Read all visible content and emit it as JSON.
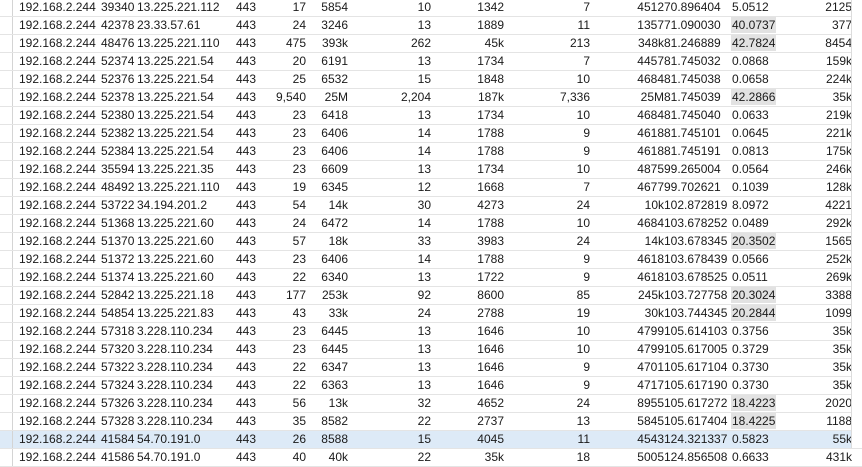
{
  "rows": [
    {
      "src": "192.168.2.244",
      "sport": "39340",
      "dst": "13.225.221.112",
      "dport": "443",
      "pa": "17",
      "ba": "5854",
      "pb": "10",
      "bb": "1342",
      "pc": "7",
      "bc": "4512",
      "rs": "70.896404",
      "dur": "5.0512",
      "hl": false,
      "bps": "2125",
      "sel": false
    },
    {
      "src": "192.168.2.244",
      "sport": "42378",
      "dst": "23.33.57.61",
      "dport": "443",
      "pa": "24",
      "ba": "3246",
      "pb": "13",
      "bb": "1889",
      "pc": "11",
      "bc": "1357",
      "rs": "71.090030",
      "dur": "40.0737",
      "hl": true,
      "bps": "377",
      "sel": false
    },
    {
      "src": "192.168.2.244",
      "sport": "48476",
      "dst": "13.225.221.110",
      "dport": "443",
      "pa": "475",
      "ba": "393k",
      "pb": "262",
      "bb": "45k",
      "pc": "213",
      "bc": "348k",
      "rs": "81.246889",
      "dur": "42.7824",
      "hl": true,
      "bps": "8454",
      "sel": false
    },
    {
      "src": "192.168.2.244",
      "sport": "52374",
      "dst": "13.225.221.54",
      "dport": "443",
      "pa": "20",
      "ba": "6191",
      "pb": "13",
      "bb": "1734",
      "pc": "7",
      "bc": "4457",
      "rs": "81.745032",
      "dur": "0.0868",
      "hl": false,
      "bps": "159k",
      "sel": false
    },
    {
      "src": "192.168.2.244",
      "sport": "52376",
      "dst": "13.225.221.54",
      "dport": "443",
      "pa": "25",
      "ba": "6532",
      "pb": "15",
      "bb": "1848",
      "pc": "10",
      "bc": "4684",
      "rs": "81.745038",
      "dur": "0.0658",
      "hl": false,
      "bps": "224k",
      "sel": false
    },
    {
      "src": "192.168.2.244",
      "sport": "52378",
      "dst": "13.225.221.54",
      "dport": "443",
      "pa": "9,540",
      "ba": "25M",
      "pb": "2,204",
      "bb": "187k",
      "pc": "7,336",
      "bc": "25M",
      "rs": "81.745039",
      "dur": "42.2866",
      "hl": true,
      "bps": "35k",
      "sel": false
    },
    {
      "src": "192.168.2.244",
      "sport": "52380",
      "dst": "13.225.221.54",
      "dport": "443",
      "pa": "23",
      "ba": "6418",
      "pb": "13",
      "bb": "1734",
      "pc": "10",
      "bc": "4684",
      "rs": "81.745040",
      "dur": "0.0633",
      "hl": false,
      "bps": "219k",
      "sel": false
    },
    {
      "src": "192.168.2.244",
      "sport": "52382",
      "dst": "13.225.221.54",
      "dport": "443",
      "pa": "23",
      "ba": "6406",
      "pb": "14",
      "bb": "1788",
      "pc": "9",
      "bc": "4618",
      "rs": "81.745101",
      "dur": "0.0645",
      "hl": false,
      "bps": "221k",
      "sel": false
    },
    {
      "src": "192.168.2.244",
      "sport": "52384",
      "dst": "13.225.221.54",
      "dport": "443",
      "pa": "23",
      "ba": "6406",
      "pb": "14",
      "bb": "1788",
      "pc": "9",
      "bc": "4618",
      "rs": "81.745191",
      "dur": "0.0813",
      "hl": false,
      "bps": "175k",
      "sel": false
    },
    {
      "src": "192.168.2.244",
      "sport": "35594",
      "dst": "13.225.221.35",
      "dport": "443",
      "pa": "23",
      "ba": "6609",
      "pb": "13",
      "bb": "1734",
      "pc": "10",
      "bc": "4875",
      "rs": "99.265004",
      "dur": "0.0564",
      "hl": false,
      "bps": "246k",
      "sel": false
    },
    {
      "src": "192.168.2.244",
      "sport": "48492",
      "dst": "13.225.221.110",
      "dport": "443",
      "pa": "19",
      "ba": "6345",
      "pb": "12",
      "bb": "1668",
      "pc": "7",
      "bc": "4677",
      "rs": "99.702621",
      "dur": "0.1039",
      "hl": false,
      "bps": "128k",
      "sel": false
    },
    {
      "src": "192.168.2.244",
      "sport": "53722",
      "dst": "34.194.201.2",
      "dport": "443",
      "pa": "54",
      "ba": "14k",
      "pb": "30",
      "bb": "4273",
      "pc": "24",
      "bc": "10k",
      "rs": "102.872819",
      "dur": "8.0972",
      "hl": false,
      "bps": "4221",
      "sel": false
    },
    {
      "src": "192.168.2.244",
      "sport": "51368",
      "dst": "13.225.221.60",
      "dport": "443",
      "pa": "24",
      "ba": "6472",
      "pb": "14",
      "bb": "1788",
      "pc": "10",
      "bc": "4684",
      "rs": "103.678252",
      "dur": "0.0489",
      "hl": false,
      "bps": "292k",
      "sel": false
    },
    {
      "src": "192.168.2.244",
      "sport": "51370",
      "dst": "13.225.221.60",
      "dport": "443",
      "pa": "57",
      "ba": "18k",
      "pb": "33",
      "bb": "3983",
      "pc": "24",
      "bc": "14k",
      "rs": "103.678345",
      "dur": "20.3502",
      "hl": true,
      "bps": "1565",
      "sel": false
    },
    {
      "src": "192.168.2.244",
      "sport": "51372",
      "dst": "13.225.221.60",
      "dport": "443",
      "pa": "23",
      "ba": "6406",
      "pb": "14",
      "bb": "1788",
      "pc": "9",
      "bc": "4618",
      "rs": "103.678439",
      "dur": "0.0566",
      "hl": false,
      "bps": "252k",
      "sel": false
    },
    {
      "src": "192.168.2.244",
      "sport": "51374",
      "dst": "13.225.221.60",
      "dport": "443",
      "pa": "22",
      "ba": "6340",
      "pb": "13",
      "bb": "1722",
      "pc": "9",
      "bc": "4618",
      "rs": "103.678525",
      "dur": "0.0511",
      "hl": false,
      "bps": "269k",
      "sel": false
    },
    {
      "src": "192.168.2.244",
      "sport": "52842",
      "dst": "13.225.221.18",
      "dport": "443",
      "pa": "177",
      "ba": "253k",
      "pb": "92",
      "bb": "8600",
      "pc": "85",
      "bc": "245k",
      "rs": "103.727758",
      "dur": "20.3024",
      "hl": true,
      "bps": "3388",
      "sel": false
    },
    {
      "src": "192.168.2.244",
      "sport": "54854",
      "dst": "13.225.221.83",
      "dport": "443",
      "pa": "43",
      "ba": "33k",
      "pb": "24",
      "bb": "2788",
      "pc": "19",
      "bc": "30k",
      "rs": "103.744345",
      "dur": "20.2844",
      "hl": true,
      "bps": "1099",
      "sel": false
    },
    {
      "src": "192.168.2.244",
      "sport": "57318",
      "dst": "3.228.110.234",
      "dport": "443",
      "pa": "23",
      "ba": "6445",
      "pb": "13",
      "bb": "1646",
      "pc": "10",
      "bc": "4799",
      "rs": "105.614103",
      "dur": "0.3756",
      "hl": false,
      "bps": "35k",
      "sel": false
    },
    {
      "src": "192.168.2.244",
      "sport": "57320",
      "dst": "3.228.110.234",
      "dport": "443",
      "pa": "23",
      "ba": "6445",
      "pb": "13",
      "bb": "1646",
      "pc": "10",
      "bc": "4799",
      "rs": "105.617005",
      "dur": "0.3729",
      "hl": false,
      "bps": "35k",
      "sel": false
    },
    {
      "src": "192.168.2.244",
      "sport": "57322",
      "dst": "3.228.110.234",
      "dport": "443",
      "pa": "22",
      "ba": "6347",
      "pb": "13",
      "bb": "1646",
      "pc": "9",
      "bc": "4701",
      "rs": "105.617104",
      "dur": "0.3730",
      "hl": false,
      "bps": "35k",
      "sel": false
    },
    {
      "src": "192.168.2.244",
      "sport": "57324",
      "dst": "3.228.110.234",
      "dport": "443",
      "pa": "22",
      "ba": "6363",
      "pb": "13",
      "bb": "1646",
      "pc": "9",
      "bc": "4717",
      "rs": "105.617190",
      "dur": "0.3730",
      "hl": false,
      "bps": "35k",
      "sel": false
    },
    {
      "src": "192.168.2.244",
      "sport": "57326",
      "dst": "3.228.110.234",
      "dport": "443",
      "pa": "56",
      "ba": "13k",
      "pb": "32",
      "bb": "4652",
      "pc": "24",
      "bc": "8955",
      "rs": "105.617272",
      "dur": "18.4223",
      "hl": true,
      "bps": "2020",
      "sel": false
    },
    {
      "src": "192.168.2.244",
      "sport": "57328",
      "dst": "3.228.110.234",
      "dport": "443",
      "pa": "35",
      "ba": "8582",
      "pb": "22",
      "bb": "2737",
      "pc": "13",
      "bc": "5845",
      "rs": "105.617404",
      "dur": "18.4225",
      "hl": true,
      "bps": "1188",
      "sel": false
    },
    {
      "src": "192.168.2.244",
      "sport": "41584",
      "dst": "54.70.191.0",
      "dport": "443",
      "pa": "26",
      "ba": "8588",
      "pb": "15",
      "bb": "4045",
      "pc": "11",
      "bc": "4543",
      "rs": "124.321337",
      "dur": "0.5823",
      "hl": false,
      "bps": "55k",
      "sel": true
    },
    {
      "src": "192.168.2.244",
      "sport": "41586",
      "dst": "54.70.191.0",
      "dport": "443",
      "pa": "40",
      "ba": "40k",
      "pb": "22",
      "bb": "35k",
      "pc": "18",
      "bc": "5005",
      "rs": "124.856508",
      "dur": "0.6633",
      "hl": false,
      "bps": "431k",
      "sel": false
    }
  ]
}
